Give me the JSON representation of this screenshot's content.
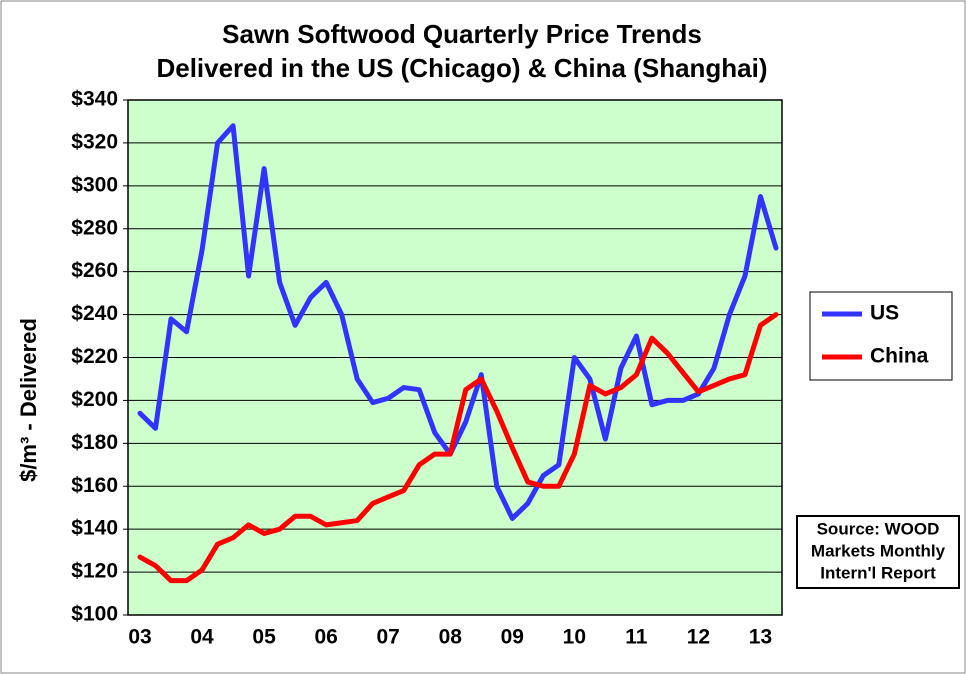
{
  "chart_data": {
    "type": "line",
    "title": [
      "Sawn Softwood Quarterly Price Trends",
      "Delivered in the US (Chicago) & China (Shanghai)"
    ],
    "y_label": "$/m³ - Delivered",
    "categories": [
      "03",
      null,
      null,
      null,
      "04",
      null,
      null,
      null,
      "05",
      null,
      null,
      null,
      "06",
      null,
      null,
      null,
      "07",
      null,
      null,
      null,
      "08",
      null,
      null,
      null,
      "09",
      null,
      null,
      null,
      "10",
      null,
      null,
      null,
      "11",
      null,
      null,
      null,
      "12",
      null,
      null,
      null,
      "13",
      null
    ],
    "series": [
      {
        "name": "US",
        "color": "#3333ff",
        "values": [
          194,
          187,
          238,
          232,
          270,
          320,
          328,
          258,
          308,
          255,
          235,
          248,
          255,
          240,
          210,
          199,
          201,
          206,
          205,
          185,
          175,
          190,
          212,
          160,
          145,
          152,
          165,
          170,
          220,
          210,
          182,
          215,
          230,
          198,
          200,
          200,
          203,
          215,
          240,
          258,
          295,
          271
        ]
      },
      {
        "name": "China",
        "color": "#ff0000",
        "values": [
          127,
          123,
          116,
          116,
          121,
          133,
          136,
          142,
          138,
          140,
          146,
          146,
          142,
          143,
          144,
          152,
          155,
          158,
          170,
          175,
          175,
          205,
          210,
          195,
          178,
          162,
          160,
          160,
          175,
          207,
          203,
          206,
          212,
          229,
          222,
          213,
          204,
          207,
          210,
          212,
          235,
          240
        ]
      }
    ],
    "ylim": [
      100,
      340
    ],
    "yticks": [
      {
        "value": 100,
        "label": "$100"
      },
      {
        "value": 120,
        "label": "$120"
      },
      {
        "value": 140,
        "label": "$140"
      },
      {
        "value": 160,
        "label": "$160"
      },
      {
        "value": 180,
        "label": "$180"
      },
      {
        "value": 200,
        "label": "$200"
      },
      {
        "value": 220,
        "label": "$220"
      },
      {
        "value": 240,
        "label": "$240"
      },
      {
        "value": 260,
        "label": "$260"
      },
      {
        "value": 280,
        "label": "$280"
      },
      {
        "value": 300,
        "label": "$300"
      },
      {
        "value": 320,
        "label": "$320"
      },
      {
        "value": 340,
        "label": "$340"
      }
    ],
    "grid": true,
    "legend": "right",
    "source": [
      "Source: WOOD",
      "Markets Monthly",
      "Intern'l Report"
    ]
  }
}
